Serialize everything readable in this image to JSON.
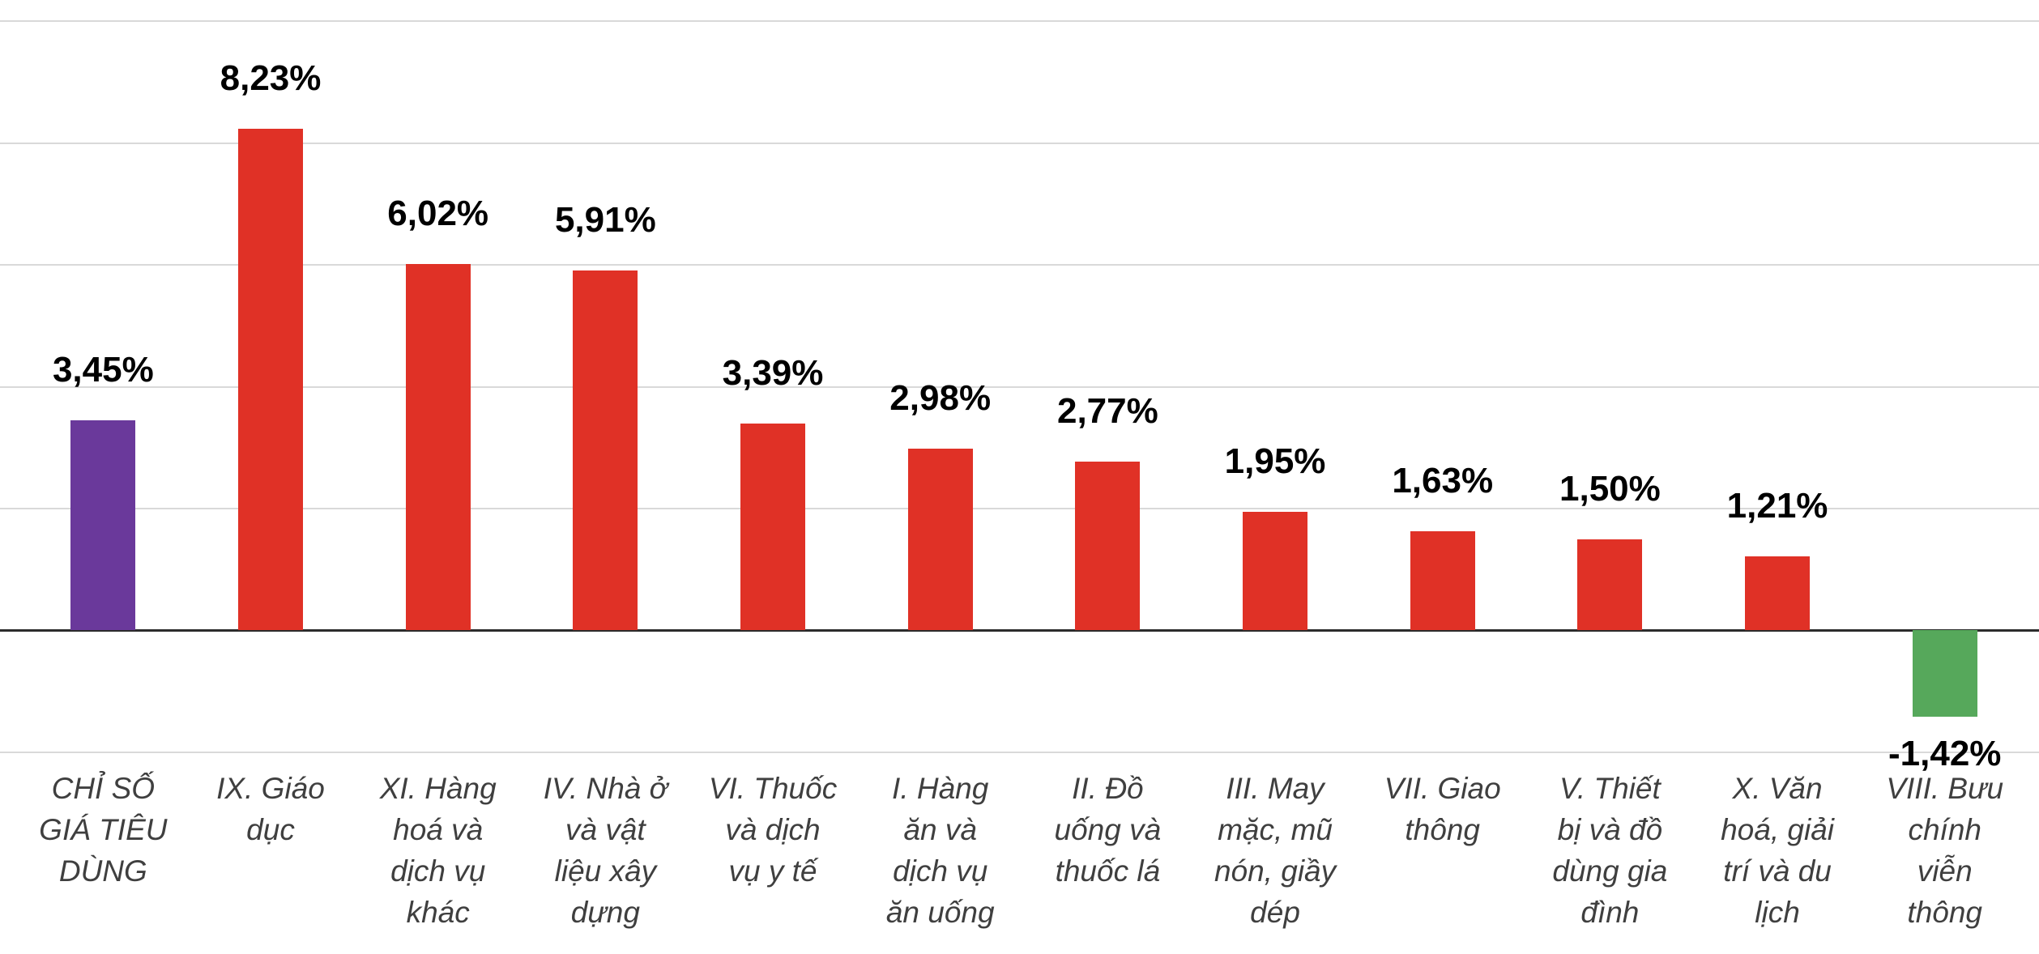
{
  "chart_data": {
    "type": "bar",
    "title": "",
    "unit": "%",
    "legend": "none",
    "grid": true,
    "ylim": [
      -2.15,
      10.35
    ],
    "gridline_values": [
      10,
      8,
      6,
      4,
      2,
      -2
    ],
    "axis_value": 0,
    "categories": [
      {
        "label": "CHỈ SỐ GIÁ TIÊU DÙNG",
        "lines": [
          "CHỈ SỐ",
          "GIÁ TIÊU",
          "DÙNG"
        ]
      },
      {
        "label": "IX. Giáo dục",
        "lines": [
          "IX. Giáo",
          "dục"
        ]
      },
      {
        "label": "XI. Hàng hoá và dịch vụ khác",
        "lines": [
          "XI. Hàng",
          "hoá và",
          "dịch vụ",
          "khác"
        ]
      },
      {
        "label": "IV. Nhà ở và vật liệu xây dựng",
        "lines": [
          "IV. Nhà ở",
          "và vật",
          "liệu xây",
          "dựng"
        ]
      },
      {
        "label": "VI. Thuốc và dịch vụ y tế",
        "lines": [
          "VI. Thuốc",
          "và dịch",
          "vụ y tế"
        ]
      },
      {
        "label": "I. Hàng ăn và dịch vụ ăn uống",
        "lines": [
          "I. Hàng",
          "ăn và",
          "dịch vụ",
          "ăn uống"
        ]
      },
      {
        "label": "II. Đồ uống và thuốc lá",
        "lines": [
          "II. Đồ",
          "uống và",
          "thuốc lá"
        ]
      },
      {
        "label": "III. May mặc, mũ nón, giầy dép",
        "lines": [
          "III. May",
          "mặc, mũ",
          "nón, giầy",
          "dép"
        ]
      },
      {
        "label": "VII. Giao thông",
        "lines": [
          "VII. Giao",
          "thông"
        ]
      },
      {
        "label": "V. Thiết bị và đồ dùng gia đình",
        "lines": [
          "V. Thiết",
          "bị và đồ",
          "dùng gia",
          "đình"
        ]
      },
      {
        "label": "X. Văn hoá, giải trí và du lịch",
        "lines": [
          "X. Văn",
          "hoá, giải",
          "trí và du",
          "lịch"
        ]
      },
      {
        "label": "VIII. Bưu chính viễn thông",
        "lines": [
          "VIII. Bưu",
          "chính",
          "viễn",
          "thông"
        ]
      }
    ],
    "values": [
      3.45,
      8.23,
      6.02,
      5.91,
      3.39,
      2.98,
      2.77,
      1.95,
      1.63,
      1.5,
      1.21,
      -1.42
    ],
    "value_labels": [
      "3,45%",
      "8,23%",
      "6,02%",
      "5,91%",
      "3,39%",
      "2,98%",
      "2,77%",
      "1,95%",
      "1,63%",
      "1,50%",
      "1,21%",
      "-1,42%"
    ],
    "bar_colors": [
      "#6A399B",
      "#E03126",
      "#E03126",
      "#E03126",
      "#E03126",
      "#E03126",
      "#E03126",
      "#E03126",
      "#E03126",
      "#E03126",
      "#E03126",
      "#56A85B"
    ],
    "colors": {
      "cpi_bar": "#6A399B",
      "increase_bar": "#E03126",
      "decrease_bar": "#56A85B",
      "gridline": "#D9D9D9",
      "axis_line": "#2B2B2B",
      "value_label": "#000000",
      "category_label": "#3F3F3F"
    }
  }
}
